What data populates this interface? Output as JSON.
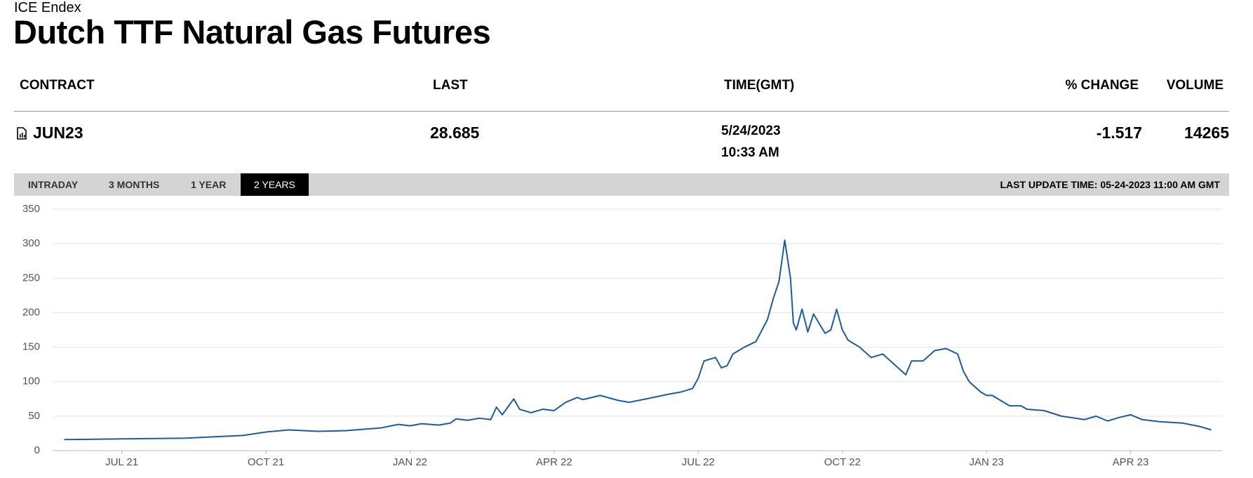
{
  "header": {
    "exchange": "ICE Endex",
    "title": "Dutch TTF Natural Gas Futures"
  },
  "table": {
    "columns": [
      "CONTRACT",
      "LAST",
      "TIME(GMT)",
      "% CHANGE",
      "VOLUME"
    ],
    "rows": [
      {
        "contract": "JUN23",
        "last": 28.685,
        "date": "5/24/2023",
        "time": "10:33 AM",
        "change": -1.517,
        "volume": 14265
      }
    ]
  },
  "tabs": [
    "INTRADAY",
    "3 MONTHS",
    "1 YEAR",
    "2 YEARS"
  ],
  "last_update": "LAST UPDATE TIME: 05-24-2023 11:00 AM GMT",
  "chart_data": {
    "type": "line",
    "color": "#1f5b99",
    "grid": true,
    "xlim": [
      2021.38,
      2023.41
    ],
    "ylim": [
      0,
      350
    ],
    "yticks": [
      0,
      50,
      100,
      150,
      200,
      250,
      300,
      350
    ],
    "xticks": [
      {
        "value": 2021.5,
        "label": "JUL 21"
      },
      {
        "value": 2021.75,
        "label": "OCT 21"
      },
      {
        "value": 2022.0,
        "label": "JAN 22"
      },
      {
        "value": 2022.25,
        "label": "APR 22"
      },
      {
        "value": 2022.5,
        "label": "JUL 22"
      },
      {
        "value": 2022.75,
        "label": "OCT 22"
      },
      {
        "value": 2023.0,
        "label": "JAN 23"
      },
      {
        "value": 2023.25,
        "label": "APR 23"
      }
    ],
    "x": [
      2021.4,
      2021.5,
      2021.61,
      2021.71,
      2021.75,
      2021.79,
      2021.84,
      2021.89,
      2021.95,
      2021.98,
      2022.0,
      2022.02,
      2022.05,
      2022.07,
      2022.08,
      2022.1,
      2022.12,
      2022.14,
      2022.15,
      2022.16,
      2022.18,
      2022.19,
      2022.21,
      2022.23,
      2022.25,
      2022.27,
      2022.29,
      2022.3,
      2022.33,
      2022.36,
      2022.38,
      2022.41,
      2022.45,
      2022.47,
      2022.49,
      2022.5,
      2022.51,
      2022.53,
      2022.54,
      2022.55,
      2022.56,
      2022.58,
      2022.6,
      2022.62,
      2022.63,
      2022.64,
      2022.65,
      2022.66,
      2022.665,
      2022.67,
      2022.68,
      2022.69,
      2022.7,
      2022.72,
      2022.73,
      2022.74,
      2022.75,
      2022.76,
      2022.78,
      2022.8,
      2022.82,
      2022.84,
      2022.86,
      2022.87,
      2022.89,
      2022.91,
      2022.93,
      2022.95,
      2022.96,
      2022.97,
      2022.99,
      2023.0,
      2023.01,
      2023.04,
      2023.06,
      2023.07,
      2023.1,
      2023.13,
      2023.17,
      2023.19,
      2023.21,
      2023.23,
      2023.25,
      2023.27,
      2023.3,
      2023.34,
      2023.37,
      2023.39
    ],
    "values": [
      16,
      17,
      18,
      22,
      27,
      30,
      28,
      29,
      33,
      38,
      36,
      39,
      37,
      40,
      46,
      44,
      47,
      45,
      63,
      52,
      75,
      60,
      55,
      60,
      58,
      70,
      77,
      74,
      80,
      73,
      70,
      75,
      82,
      85,
      90,
      105,
      130,
      135,
      120,
      123,
      140,
      150,
      158,
      190,
      220,
      245,
      305,
      250,
      185,
      175,
      205,
      172,
      198,
      170,
      175,
      205,
      175,
      160,
      150,
      135,
      140,
      125,
      110,
      130,
      130,
      145,
      148,
      140,
      115,
      100,
      85,
      80,
      80,
      65,
      65,
      60,
      58,
      50,
      45,
      50,
      43,
      48,
      52,
      45,
      42,
      40,
      35,
      30
    ]
  }
}
